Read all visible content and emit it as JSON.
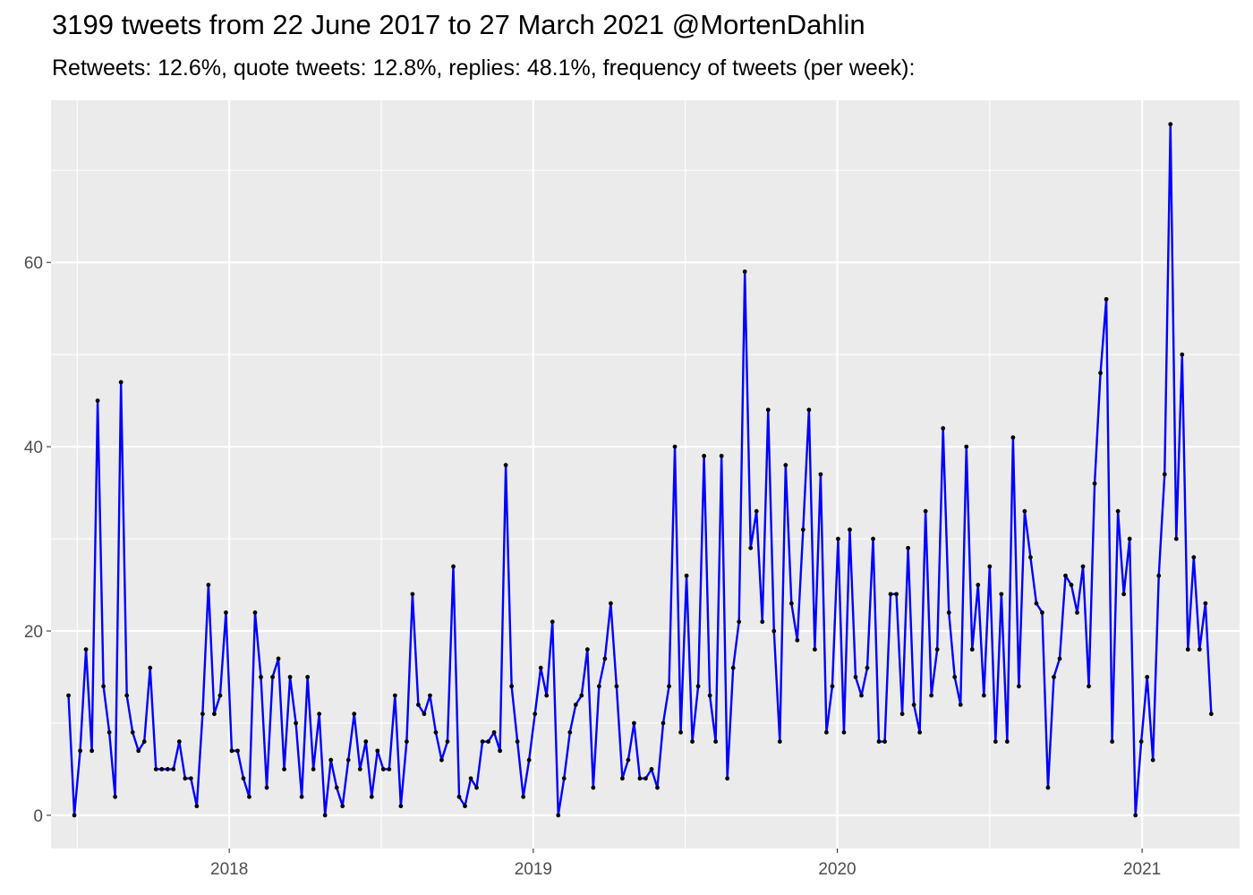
{
  "title": "3199 tweets from 22 June 2017 to 27 March 2021 @MortenDahlin",
  "subtitle": "Retweets: 12.6%, quote tweets: 12.8%, replies: 48.1%, frequency of tweets (per week):",
  "chart_data": {
    "type": "line",
    "xlabel": "",
    "ylabel": "",
    "grid": true,
    "ylim": [
      -3.6,
      77.6
    ],
    "xlim": [
      "2017-06-01",
      "2021-04-28"
    ],
    "y_ticks": [
      0,
      20,
      40,
      60
    ],
    "y_tick_labels": [
      "0",
      "20",
      "40",
      "60"
    ],
    "x_ticks": [
      "2018-01-01",
      "2019-01-01",
      "2020-01-01",
      "2021-01-01"
    ],
    "x_tick_labels": [
      "2018",
      "2019",
      "2020",
      "2021"
    ],
    "line_color": "#0000ff",
    "point_color": "#000000",
    "panel_color": "#ebebeb",
    "series": [
      {
        "x": [
          "2017-06-22",
          "2017-06-29",
          "2017-07-06",
          "2017-07-13",
          "2017-07-20",
          "2017-07-27",
          "2017-08-03",
          "2017-08-10",
          "2017-08-17",
          "2017-08-24",
          "2017-08-31",
          "2017-09-07",
          "2017-09-14",
          "2017-09-21",
          "2017-09-28",
          "2017-10-05",
          "2017-10-12",
          "2017-10-19",
          "2017-10-26",
          "2017-11-02",
          "2017-11-09",
          "2017-11-16",
          "2017-11-23",
          "2017-11-30",
          "2017-12-07",
          "2017-12-14",
          "2017-12-21",
          "2017-12-28",
          "2018-01-04",
          "2018-01-11",
          "2018-01-18",
          "2018-01-25",
          "2018-02-01",
          "2018-02-08",
          "2018-02-15",
          "2018-02-22",
          "2018-03-01",
          "2018-03-08",
          "2018-03-15",
          "2018-03-22",
          "2018-03-29",
          "2018-04-05",
          "2018-04-12",
          "2018-04-19",
          "2018-04-26",
          "2018-05-03",
          "2018-05-10",
          "2018-05-17",
          "2018-05-24",
          "2018-05-31",
          "2018-06-07",
          "2018-06-14",
          "2018-06-21",
          "2018-06-28",
          "2018-07-05",
          "2018-07-12",
          "2018-07-19",
          "2018-07-26",
          "2018-08-02",
          "2018-08-09",
          "2018-08-16",
          "2018-08-23",
          "2018-08-30",
          "2018-09-06",
          "2018-09-13",
          "2018-09-20",
          "2018-09-27",
          "2018-10-04",
          "2018-10-11",
          "2018-10-18",
          "2018-10-25",
          "2018-11-01",
          "2018-11-08",
          "2018-11-15",
          "2018-11-22",
          "2018-11-29",
          "2018-12-06",
          "2018-12-13",
          "2018-12-20",
          "2018-12-27",
          "2019-01-03",
          "2019-01-10",
          "2019-01-17",
          "2019-01-24",
          "2019-01-31",
          "2019-02-07",
          "2019-02-14",
          "2019-02-21",
          "2019-02-28",
          "2019-03-07",
          "2019-03-14",
          "2019-03-21",
          "2019-03-28",
          "2019-04-04",
          "2019-04-11",
          "2019-04-18",
          "2019-04-25",
          "2019-05-02",
          "2019-05-09",
          "2019-05-16",
          "2019-05-23",
          "2019-05-30",
          "2019-06-06",
          "2019-06-13",
          "2019-06-20",
          "2019-06-27",
          "2019-07-04",
          "2019-07-11",
          "2019-07-18",
          "2019-07-25",
          "2019-08-01",
          "2019-08-08",
          "2019-08-15",
          "2019-08-22",
          "2019-08-29",
          "2019-09-05",
          "2019-09-12",
          "2019-09-19",
          "2019-09-26",
          "2019-10-03",
          "2019-10-10",
          "2019-10-17",
          "2019-10-24",
          "2019-10-31",
          "2019-11-07",
          "2019-11-14",
          "2019-11-21",
          "2019-11-28",
          "2019-12-05",
          "2019-12-12",
          "2019-12-19",
          "2019-12-26",
          "2020-01-02",
          "2020-01-09",
          "2020-01-16",
          "2020-01-23",
          "2020-01-30",
          "2020-02-06",
          "2020-02-13",
          "2020-02-20",
          "2020-02-27",
          "2020-03-05",
          "2020-03-12",
          "2020-03-19",
          "2020-03-26",
          "2020-04-02",
          "2020-04-09",
          "2020-04-16",
          "2020-04-23",
          "2020-04-30",
          "2020-05-07",
          "2020-05-14",
          "2020-05-21",
          "2020-05-28",
          "2020-06-04",
          "2020-06-11",
          "2020-06-18",
          "2020-06-25",
          "2020-07-02",
          "2020-07-09",
          "2020-07-16",
          "2020-07-23",
          "2020-07-30",
          "2020-08-06",
          "2020-08-13",
          "2020-08-20",
          "2020-08-27",
          "2020-09-03",
          "2020-09-10",
          "2020-09-17",
          "2020-09-24",
          "2020-10-01",
          "2020-10-08",
          "2020-10-15",
          "2020-10-22",
          "2020-10-29",
          "2020-11-05",
          "2020-11-12",
          "2020-11-19",
          "2020-11-26",
          "2020-12-03",
          "2020-12-10",
          "2020-12-17",
          "2020-12-24",
          "2020-12-31",
          "2021-01-07",
          "2021-01-14",
          "2021-01-21",
          "2021-01-28",
          "2021-02-04",
          "2021-02-11",
          "2021-02-18",
          "2021-02-25",
          "2021-03-04",
          "2021-03-11",
          "2021-03-18",
          "2021-03-25"
        ],
        "values": [
          13,
          0,
          7,
          18,
          7,
          45,
          14,
          9,
          2,
          47,
          13,
          9,
          7,
          8,
          16,
          5,
          5,
          5,
          5,
          8,
          4,
          4,
          1,
          11,
          25,
          11,
          13,
          22,
          7,
          7,
          4,
          2,
          22,
          15,
          3,
          15,
          17,
          5,
          15,
          10,
          2,
          15,
          5,
          11,
          0,
          6,
          3,
          1,
          6,
          11,
          5,
          8,
          2,
          7,
          5,
          5,
          13,
          1,
          8,
          24,
          12,
          11,
          13,
          9,
          6,
          8,
          27,
          2,
          1,
          4,
          3,
          8,
          8,
          9,
          7,
          38,
          14,
          8,
          2,
          6,
          11,
          16,
          13,
          21,
          0,
          4,
          9,
          12,
          13,
          18,
          3,
          14,
          17,
          23,
          14,
          4,
          6,
          10,
          4,
          4,
          5,
          3,
          10,
          14,
          40,
          9,
          26,
          8,
          14,
          39,
          13,
          8,
          39,
          4,
          16,
          21,
          59,
          29,
          33,
          21,
          44,
          20,
          8,
          38,
          23,
          19,
          31,
          44,
          18,
          37,
          9,
          14,
          30,
          9,
          31,
          15,
          13,
          16,
          30,
          8,
          8,
          24,
          24,
          11,
          29,
          12,
          9,
          33,
          13,
          18,
          42,
          22,
          15,
          12,
          40,
          18,
          25,
          13,
          27,
          8,
          24,
          8,
          41,
          14,
          33,
          28,
          23,
          22,
          3,
          15,
          17,
          26,
          25,
          22,
          27,
          14,
          36,
          48,
          56,
          8,
          33,
          24,
          30,
          0,
          8,
          15,
          6,
          26,
          37,
          75,
          30,
          50,
          18,
          28,
          18,
          23,
          11
        ]
      }
    ]
  }
}
